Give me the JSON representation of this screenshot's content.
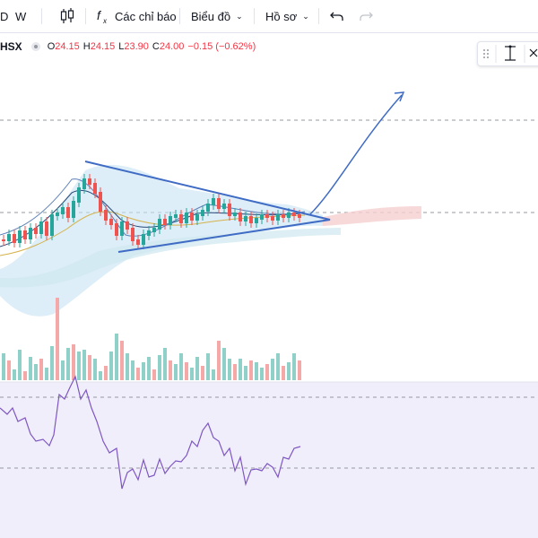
{
  "toolbar": {
    "interval_partial": "D",
    "interval_week": "W",
    "indicators_label": "Các chỉ báo",
    "chart_type_label": "Biểu đồ",
    "profile_label": "Hồ sơ"
  },
  "legend": {
    "symbol_partial": "HSX",
    "open_label": "O",
    "open_value": "24.15",
    "high_label": "H",
    "high_value": "24.15",
    "low_label": "L",
    "low_value": "23.90",
    "close_label": "C",
    "close_value": "24.00",
    "change": "−0.15 (−0.62%)"
  },
  "icons": [
    "candlestick-icon",
    "fx-icon",
    "undo-icon",
    "redo-icon",
    "drag-handle-icon",
    "measure-icon",
    "close-icon"
  ],
  "colors": {
    "up_candle": "#26a69a",
    "down_candle": "#ef5350",
    "trendline": "#3f6bc4",
    "rsi_line": "#7e57c2",
    "rsi_band": "#f1eefb",
    "ichimoku_cloud_up": "#c7e2f3",
    "ichimoku_cloud_down": "#f6d0d0"
  },
  "chart_data": {
    "type": "candlestick",
    "panes": [
      "price",
      "volume",
      "rsi"
    ],
    "visible_ohlc": {
      "open": 24.15,
      "high": 24.15,
      "low": 23.9,
      "close": 24.0,
      "change": -0.15,
      "change_pct": -0.62
    },
    "overlays": [
      "symmetrical-triangle",
      "ichimoku-cloud",
      "bollinger-bands",
      "moving-averages",
      "breakout-arrow"
    ]
  }
}
